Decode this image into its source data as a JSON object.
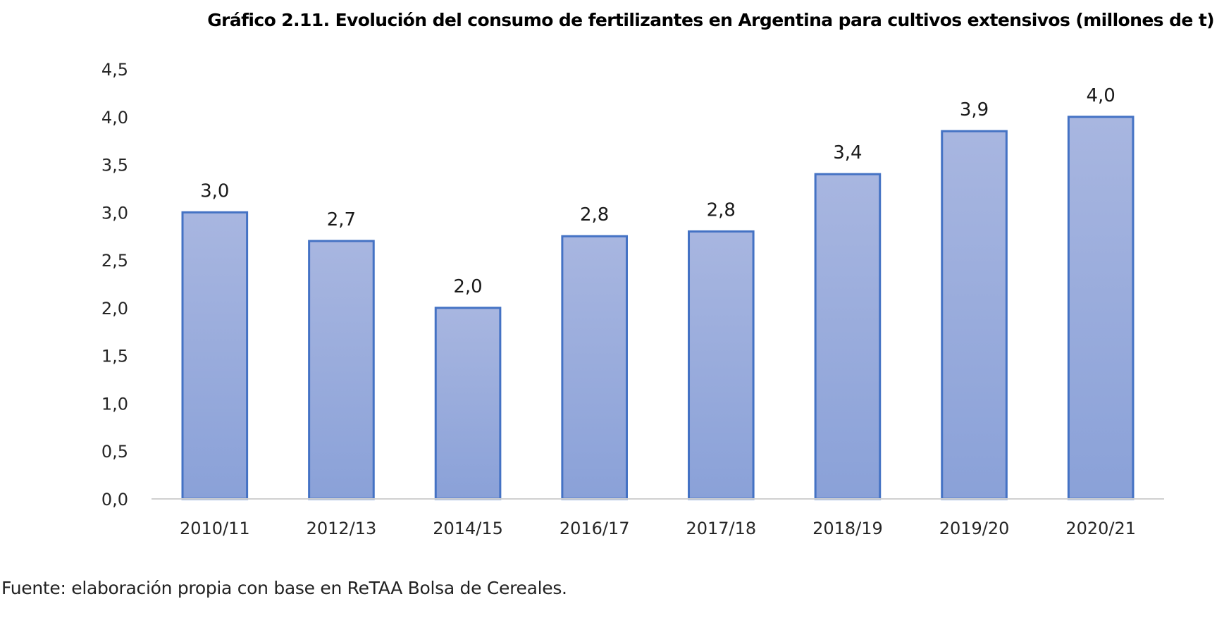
{
  "chart_data": {
    "type": "bar",
    "title": "Gráfico 2.11. Evolución del consumo de fertilizantes en Argentina para cultivos extensivos (millones de t)",
    "categories": [
      "2010/11",
      "2012/13",
      "2014/15",
      "2016/17",
      "2017/18",
      "2018/19",
      "2019/20",
      "2020/21"
    ],
    "values": [
      3.0,
      2.7,
      2.0,
      2.75,
      2.8,
      3.4,
      3.85,
      4.0
    ],
    "data_labels": [
      "3,0",
      "2,7",
      "2,0",
      "2,8",
      "2,8",
      "3,4",
      "3,9",
      "4,0"
    ],
    "xlabel": "",
    "ylabel": "",
    "ylim": [
      0,
      4.5
    ],
    "yticks": [
      0,
      0.5,
      1.0,
      1.5,
      2.0,
      2.5,
      3.0,
      3.5,
      4.0,
      4.5
    ],
    "ytick_labels": [
      "0,0",
      "0,5",
      "1,0",
      "1,5",
      "2,0",
      "2,5",
      "3,0",
      "3,5",
      "4,0",
      "4,5"
    ],
    "grid": false,
    "legend": "none",
    "colors": {
      "bar_fill_top": "#a8b6e0",
      "bar_fill_bottom": "#8aa1d8",
      "bar_stroke": "#4472c4",
      "axis": "#d0d0d0"
    }
  },
  "source": "Fuente: elaboración propia con base en ReTAA Bolsa de Cereales."
}
